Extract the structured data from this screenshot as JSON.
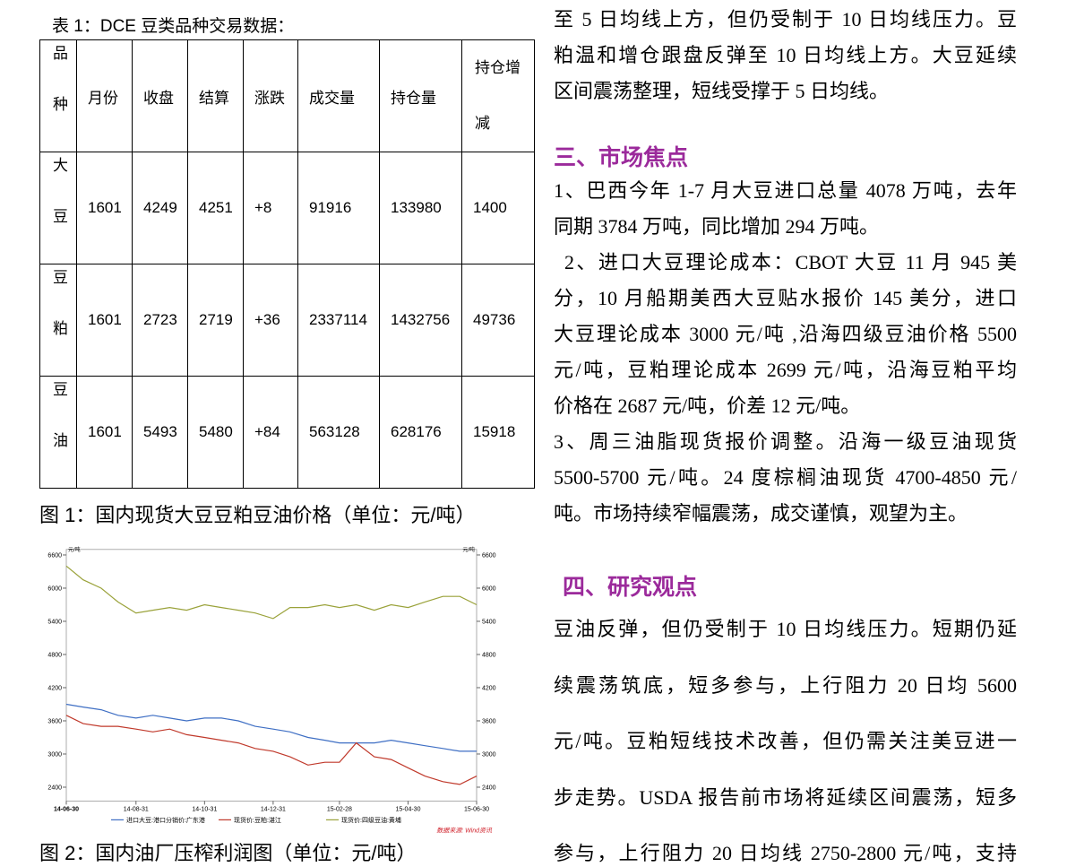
{
  "table": {
    "caption": "表 1：DCE 豆类品种交易数据：",
    "header": [
      "品种",
      "月份",
      "收盘",
      "结算",
      "涨跌",
      "成交量",
      "持仓量",
      "持仓增减"
    ],
    "rows": [
      [
        "大豆",
        "1601",
        "4249",
        "4251",
        "+8",
        "91916",
        "133980",
        "1400"
      ],
      [
        "豆粕",
        "1601",
        "2723",
        "2719",
        "+36",
        "2337114",
        "1432756",
        "49736"
      ],
      [
        "豆油",
        "1601",
        "5493",
        "5480",
        "+84",
        "563128",
        "628176",
        "15918"
      ]
    ]
  },
  "figure1_caption": "图 1：国内现货大豆豆粕豆油价格（单位：元/吨）",
  "chart_data": {
    "type": "line",
    "y_label": "元/吨",
    "y2_label": "元/吨",
    "source": "数据来源: Wind资讯",
    "x": [
      "14-06-30",
      "14-07-15",
      "14-07-31",
      "14-08-15",
      "14-08-31",
      "14-09-15",
      "14-09-30",
      "14-10-15",
      "14-10-31",
      "14-11-15",
      "14-11-30",
      "14-12-15",
      "14-12-31",
      "15-01-15",
      "15-01-31",
      "15-02-15",
      "15-02-28",
      "15-03-15",
      "15-03-31",
      "15-04-15",
      "15-04-30",
      "15-05-15",
      "15-05-31",
      "15-06-15",
      "15-06-30"
    ],
    "xlim": [
      "14-06-30",
      "15-06-30"
    ],
    "xticks": [
      "14-06-30",
      "14-08-31",
      "14-10-31",
      "14-12-31",
      "15-02-28",
      "15-04-30",
      "15-06-30"
    ],
    "ylim": [
      2150,
      6700
    ],
    "yticks": [
      2400,
      3000,
      3600,
      4200,
      4800,
      5400,
      6000,
      6600
    ],
    "y2lim": [
      2150,
      6700
    ],
    "y2ticks": [
      2400,
      3000,
      3600,
      4200,
      4800,
      5400,
      6000,
      6600
    ],
    "series": [
      {
        "name": "进口大豆:港口分销价:广东港",
        "color": "#3f6fc4",
        "values": [
          3900,
          3850,
          3800,
          3700,
          3650,
          3700,
          3650,
          3600,
          3650,
          3650,
          3600,
          3500,
          3450,
          3400,
          3300,
          3250,
          3200,
          3200,
          3200,
          3250,
          3200,
          3150,
          3100,
          3050,
          3050
        ]
      },
      {
        "name": "现货价:豆粕:湛江",
        "color": "#c0392b",
        "values": [
          3700,
          3550,
          3500,
          3500,
          3450,
          3400,
          3450,
          3350,
          3300,
          3250,
          3200,
          3100,
          3050,
          2950,
          2800,
          2850,
          2850,
          3200,
          2950,
          2900,
          2750,
          2600,
          2500,
          2450,
          2600
        ]
      },
      {
        "name": "现货价:四级豆油:黄埔",
        "color": "#9aa23a",
        "values": [
          6400,
          6150,
          6000,
          5750,
          5550,
          5600,
          5650,
          5600,
          5700,
          5650,
          5600,
          5550,
          5450,
          5650,
          5650,
          5700,
          5650,
          5700,
          5600,
          5700,
          5650,
          5750,
          5850,
          5850,
          5700
        ]
      }
    ]
  },
  "figure2_caption": "图 2：国内油厂压榨利润图（单位：元/吨）",
  "right_column": {
    "intro_lines": [
      "至 5 日均线上方，但仍受制于 10 日均线压力。豆",
      "粕温和增仓跟盘反弹至 10 日均线上方。大豆延续",
      "区间震荡整理，短线受撑于 5 日均线。"
    ],
    "section3": {
      "heading": "三、市场焦点",
      "paragraphs": [
        [
          "1、巴西今年 1-7 月大豆进口总量 4078 万吨，去年",
          "同期 3784 万吨，同比增加 294 万吨。"
        ],
        [
          "2、进口大豆理论成本：CBOT 大豆 11 月 945 美",
          "分，10 月船期美西大豆贴水报价 145 美分，进口",
          "大豆理论成本 3000 元/吨 ,沿海四级豆油价格 5500",
          "元/吨，豆粕理论成本 2699 元/吨，沿海豆粕平均",
          "价格在 2687 元/吨，价差 12 元/吨。"
        ],
        [
          "3、周三油脂现货报价调整。沿海一级豆油现货",
          "5500-5700 元/吨。24 度棕榈油现货 4700-4850 元/",
          "吨。市场持续窄幅震荡，成交谨慎，观望为主。"
        ]
      ]
    },
    "section4": {
      "heading": "四、研究观点",
      "lines": [
        "豆油反弹，但仍受制于 10 日均线压力。短期仍延",
        "续震荡筑底，短多参与，上行阻力 20 日均 5600",
        "元/吨。豆粕短线技术改善，但仍需关注美豆进一",
        "步走势。USDA 报告前市场将延续区间震荡，短多",
        "参与，上行阻力 20 日均线 2750-2800 元/吨，支持"
      ]
    }
  }
}
